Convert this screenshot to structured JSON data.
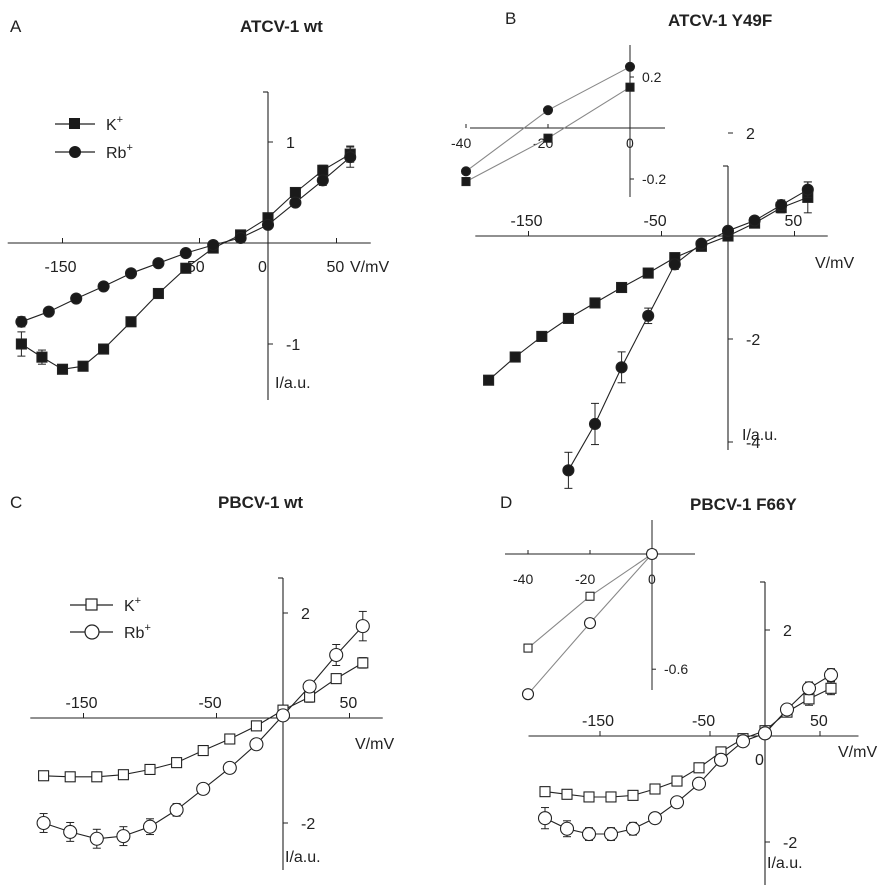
{
  "chart_data": [
    {
      "panel": "A",
      "title": "ATCV-1 wt",
      "type": "line",
      "xlabel": "V/mV",
      "ylabel": "I/a.u.",
      "xlim": [
        -190,
        75
      ],
      "ylim": [
        -1.55,
        1.5
      ],
      "xticks": [
        -150,
        -50,
        0,
        50
      ],
      "yticks": [
        -1,
        1
      ],
      "legend": "top-left",
      "series": [
        {
          "name": "K+",
          "marker": "square",
          "filled": true,
          "x": [
            -180,
            -165,
            -150,
            -135,
            -120,
            -100,
            -80,
            -60,
            -40,
            -20,
            0,
            20,
            40,
            60
          ],
          "y": [
            -1.0,
            -1.13,
            -1.25,
            -1.22,
            -1.05,
            -0.78,
            -0.5,
            -0.25,
            -0.05,
            0.08,
            0.25,
            0.5,
            0.72,
            0.88
          ],
          "err": [
            0.12,
            0.07,
            0.03,
            0.03,
            0.03,
            0.03,
            0.03,
            0.02,
            0.02,
            0.02,
            0.02,
            0.03,
            0.05,
            0.08
          ]
        },
        {
          "name": "Rb+",
          "marker": "circle",
          "filled": true,
          "x": [
            -180,
            -160,
            -140,
            -120,
            -100,
            -80,
            -60,
            -40,
            -20,
            0,
            20,
            40,
            60
          ],
          "y": [
            -0.78,
            -0.68,
            -0.55,
            -0.43,
            -0.3,
            -0.2,
            -0.1,
            -0.02,
            0.05,
            0.18,
            0.4,
            0.62,
            0.85
          ],
          "err": [
            0.05,
            0.03,
            0.03,
            0.03,
            0.03,
            0.03,
            0.02,
            0.02,
            0.02,
            0.02,
            0.03,
            0.05,
            0.1
          ]
        }
      ]
    },
    {
      "panel": "B",
      "title": "ATCV-1 Y49F",
      "type": "line",
      "xlabel": "V/mV",
      "ylabel": "I/a.u.",
      "xlim": [
        -190,
        75
      ],
      "ylim": [
        -5.1,
        2.2
      ],
      "xticks": [
        -150,
        -50,
        50
      ],
      "yticks": [
        -4,
        -2,
        2
      ],
      "series": [
        {
          "name": "K+",
          "marker": "square",
          "filled": true,
          "x": [
            -180,
            -160,
            -140,
            -120,
            -100,
            -80,
            -60,
            -40,
            -20,
            0,
            20,
            40,
            60
          ],
          "y": [
            -2.8,
            -2.35,
            -1.95,
            -1.6,
            -1.3,
            -1.0,
            -0.72,
            -0.42,
            -0.2,
            0.0,
            0.25,
            0.55,
            0.75
          ],
          "err": [
            0.05,
            0.05,
            0.05,
            0.05,
            0.05,
            0.05,
            0.05,
            0.05,
            0.05,
            0.05,
            0.05,
            0.1,
            0.3
          ]
        },
        {
          "name": "Rb+",
          "marker": "circle",
          "filled": true,
          "x": [
            -120,
            -100,
            -80,
            -60,
            -40,
            -20,
            0,
            20,
            40,
            60
          ],
          "y": [
            -4.55,
            -3.65,
            -2.55,
            -1.55,
            -0.55,
            -0.15,
            0.1,
            0.3,
            0.6,
            0.9
          ],
          "err": [
            0.35,
            0.4,
            0.3,
            0.15,
            0.1,
            0.05,
            0.05,
            0.05,
            0.1,
            0.15
          ]
        }
      ],
      "inset": {
        "xlim": [
          -44,
          6
        ],
        "ylim": [
          -0.28,
          0.3
        ],
        "xticks": [
          -40,
          -20,
          0
        ],
        "yticks": [
          -0.2,
          0.2
        ],
        "series": [
          {
            "name": "K+",
            "marker": "square",
            "filled": true,
            "x": [
              -40,
              -20,
              0
            ],
            "y": [
              -0.21,
              -0.04,
              0.16
            ]
          },
          {
            "name": "Rb+",
            "marker": "circle",
            "filled": true,
            "x": [
              -40,
              -20,
              0
            ],
            "y": [
              -0.17,
              0.07,
              0.24
            ]
          }
        ]
      }
    },
    {
      "panel": "C",
      "title": "PBCV-1 wt",
      "type": "line",
      "xlabel": "V/mV",
      "ylabel": "I/a.u.",
      "xlim": [
        -190,
        75
      ],
      "ylim": [
        -2.85,
        2.7
      ],
      "xticks": [
        -150,
        -50,
        50
      ],
      "yticks": [
        -2,
        2
      ],
      "legend": "top-left",
      "series": [
        {
          "name": "K+",
          "marker": "square",
          "filled": false,
          "x": [
            -180,
            -160,
            -140,
            -120,
            -100,
            -80,
            -60,
            -40,
            -20,
            0,
            20,
            40,
            60
          ],
          "y": [
            -1.1,
            -1.12,
            -1.12,
            -1.08,
            -0.98,
            -0.85,
            -0.62,
            -0.4,
            -0.15,
            0.15,
            0.4,
            0.75,
            1.05
          ],
          "err": [
            0.04,
            0.04,
            0.04,
            0.04,
            0.04,
            0.04,
            0.04,
            0.04,
            0.04,
            0.04,
            0.1,
            0.08,
            0.1
          ]
        },
        {
          "name": "Rb+",
          "marker": "circle",
          "filled": false,
          "x": [
            -180,
            -160,
            -140,
            -120,
            -100,
            -80,
            -60,
            -40,
            -20,
            0,
            20,
            40,
            60
          ],
          "y": [
            -2.0,
            -2.17,
            -2.3,
            -2.25,
            -2.07,
            -1.75,
            -1.35,
            -0.95,
            -0.5,
            0.05,
            0.6,
            1.2,
            1.75
          ],
          "err": [
            0.18,
            0.18,
            0.18,
            0.18,
            0.15,
            0.12,
            0.1,
            0.08,
            0.08,
            0.06,
            0.1,
            0.2,
            0.28
          ]
        }
      ]
    },
    {
      "panel": "D",
      "title": "PBCV-1 F66Y",
      "type": "line",
      "xlabel": "V/mV",
      "ylabel": "I/a.u.",
      "xlim": [
        -215,
        85
      ],
      "ylim": [
        -3.05,
        2.75
      ],
      "xticks": [
        -150,
        -50,
        0,
        50
      ],
      "yticks": [
        -2,
        2
      ],
      "series": [
        {
          "name": "K+",
          "marker": "square",
          "filled": false,
          "x": [
            -200,
            -180,
            -160,
            -140,
            -120,
            -100,
            -80,
            -60,
            -40,
            -20,
            0,
            20,
            40,
            60
          ],
          "y": [
            -1.05,
            -1.1,
            -1.15,
            -1.15,
            -1.12,
            -1.0,
            -0.85,
            -0.6,
            -0.3,
            -0.05,
            0.1,
            0.45,
            0.7,
            0.9
          ],
          "err": [
            0.06,
            0.06,
            0.06,
            0.06,
            0.06,
            0.06,
            0.06,
            0.06,
            0.06,
            0.06,
            0.06,
            0.08,
            0.12,
            0.12
          ]
        },
        {
          "name": "Rb+",
          "marker": "circle",
          "filled": false,
          "x": [
            -200,
            -180,
            -160,
            -140,
            -120,
            -100,
            -80,
            -60,
            -40,
            -20,
            0,
            20,
            40,
            60
          ],
          "y": [
            -1.55,
            -1.75,
            -1.85,
            -1.85,
            -1.75,
            -1.55,
            -1.25,
            -0.9,
            -0.45,
            -0.1,
            0.05,
            0.5,
            0.9,
            1.15
          ],
          "err": [
            0.2,
            0.15,
            0.12,
            0.12,
            0.12,
            0.1,
            0.08,
            0.08,
            0.06,
            0.06,
            0.06,
            0.08,
            0.12,
            0.12
          ]
        }
      ],
      "inset": {
        "xlim": [
          -46,
          8
        ],
        "ylim": [
          -0.78,
          0.07
        ],
        "xticks": [
          -40,
          -20,
          0
        ],
        "yticks": [
          -0.6
        ],
        "series": [
          {
            "name": "K+",
            "marker": "square",
            "filled": false,
            "x": [
              -40,
              -20,
              0
            ],
            "y": [
              -0.49,
              -0.22,
              0.0
            ]
          },
          {
            "name": "Rb+",
            "marker": "circle",
            "filled": false,
            "x": [
              -40,
              -20,
              0
            ],
            "y": [
              -0.73,
              -0.36,
              0.0
            ]
          }
        ]
      }
    }
  ],
  "legend": {
    "A": {
      "k_label": "K",
      "k_sup": "+",
      "rb_label": "Rb",
      "rb_sup": "+"
    },
    "C": {
      "k_label": "K",
      "k_sup": "+",
      "rb_label": "Rb",
      "rb_sup": "+"
    }
  },
  "colors": {
    "ink": "#222222",
    "inset_line": "#888888",
    "marker_fill": "#1a1a1a",
    "open_fill": "#ffffff"
  }
}
